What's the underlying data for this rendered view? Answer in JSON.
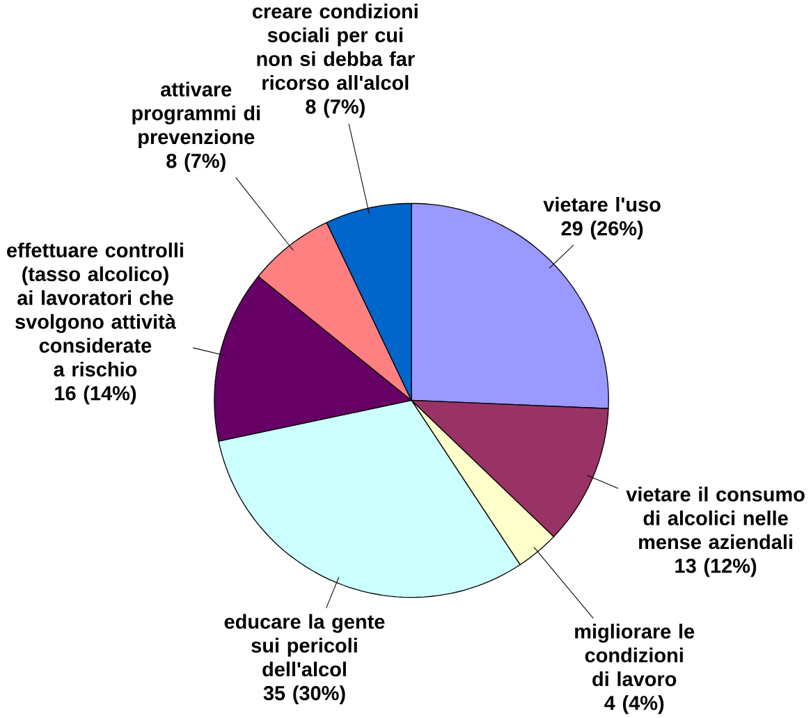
{
  "chart_data": {
    "type": "pie",
    "categories": [
      "vietare l'uso",
      "vietare il consumo di alcolici nelle mense aziendali",
      "migliorare le condizioni di lavoro",
      "educare la gente sui pericoli dell'alcol",
      "effettuare controlli (tasso alcolico) ai lavoratori che svolgono attività considerate a rischio",
      "attivare programmi di prevenzione",
      "creare condizioni sociali per cui non si debba far ricorso all'alcol"
    ],
    "values": [
      29,
      13,
      4,
      35,
      16,
      8,
      8
    ],
    "value_labels": [
      "29  (26%)",
      "13  (12%)",
      "4  (4%)",
      "35  (30%)",
      "16  (14%)",
      "8  (7%)",
      "8  (7%)"
    ],
    "colors": [
      "#9999ff",
      "#993366",
      "#ffffcc",
      "#ccffff",
      "#660066",
      "#ff8080",
      "#0066cc"
    ]
  }
}
